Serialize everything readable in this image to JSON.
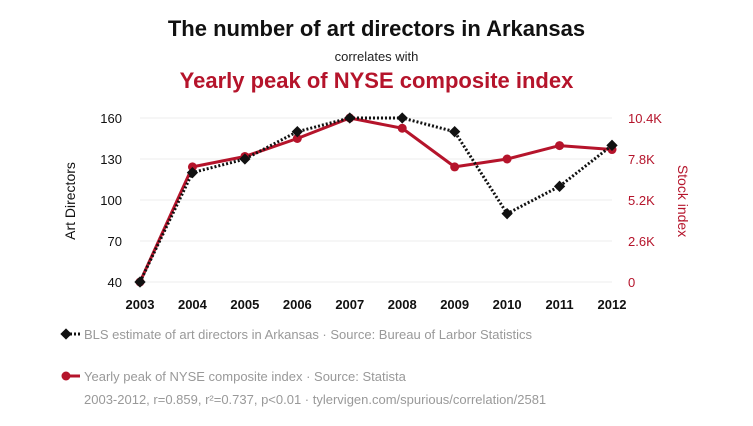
{
  "header": {
    "title": "The number of art directors in Arkansas",
    "connector": "correlates with",
    "subtitle": "Yearly peak of NYSE composite index"
  },
  "legend": {
    "series1": "BLS estimate of art directors in Arkansas · Source: Bureau of Larbor Statistics",
    "series2": "Yearly peak of NYSE composite index · Source: Statista",
    "footer": "2003-2012, r=0.859, r²=0.737, p<0.01 · tylervigen.com/spurious/correlation/2581"
  },
  "colors": {
    "series1": "#111111",
    "series2": "#b5142b",
    "grid": "#eeeeee",
    "title_accent": "#b5142b"
  },
  "chart_data": {
    "type": "line",
    "x": [
      "2003",
      "2004",
      "2005",
      "2006",
      "2007",
      "2008",
      "2009",
      "2010",
      "2011",
      "2012"
    ],
    "series": [
      {
        "name": "BLS estimate of art directors in Arkansas",
        "axis": "left",
        "style": "dotted",
        "marker": "diamond",
        "values": [
          40,
          120,
          130,
          150,
          160,
          160,
          150,
          90,
          110,
          140
        ]
      },
      {
        "name": "Yearly peak of NYSE composite index",
        "axis": "right",
        "style": "solid",
        "marker": "circle",
        "values": [
          0,
          7300,
          7960,
          9100,
          10400,
          9750,
          7300,
          7800,
          8650,
          8400
        ]
      }
    ],
    "ylabel": "Art Directors",
    "ylabel_right": "Stock index",
    "ylim": [
      40,
      160
    ],
    "yticks": [
      40,
      70,
      100,
      130,
      160
    ],
    "ylim_right": [
      0,
      10400
    ],
    "yticks_right_labels": [
      "0",
      "2.6K",
      "5.2K",
      "7.8K",
      "10.4K"
    ],
    "grid": "horizontal",
    "legend_position": "bottom-left"
  }
}
